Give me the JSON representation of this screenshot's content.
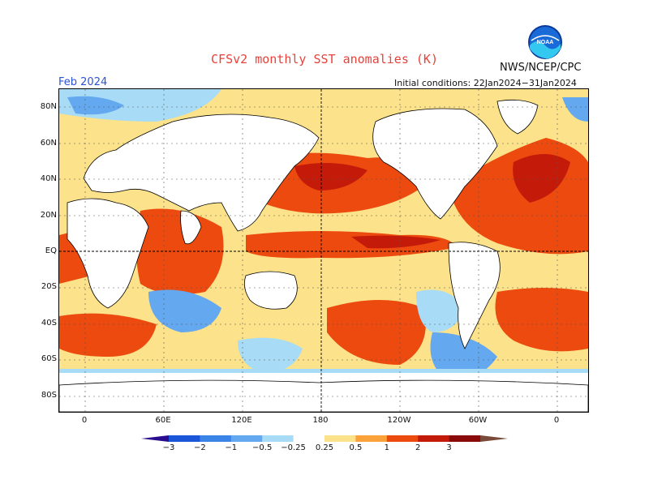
{
  "title": "CFSv2 monthly SST anomalies (K)",
  "organization": "NWS/NCEP/CPC",
  "logo_text": "NOAA",
  "forecast_month": "Feb 2024",
  "initial_conditions": "Initial conditions: 22Jan2024−31Jan2024",
  "lat_labels": [
    "80N",
    "60N",
    "40N",
    "20N",
    "EQ",
    "20S",
    "40S",
    "60S",
    "80S"
  ],
  "lon_labels": [
    "0",
    "60E",
    "120E",
    "180",
    "120W",
    "60W",
    "0"
  ],
  "colorbar": {
    "labels": [
      "−3",
      "−2",
      "−1",
      "−0.5",
      "−0.25",
      "0.25",
      "0.5",
      "1",
      "2",
      "3"
    ],
    "colors": [
      "#2a0c8e",
      "#1c56d8",
      "#3a84e8",
      "#64a8f0",
      "#a8dcf6",
      "#ffffff",
      "#fce28a",
      "#fca23a",
      "#ec4a0e",
      "#c41a0a",
      "#8a0a0a",
      "#7a4a3a"
    ]
  },
  "colors": {
    "title": "#e8423a",
    "period": "#2a52d8",
    "land": "#ffffff",
    "coast": "#000000"
  }
}
